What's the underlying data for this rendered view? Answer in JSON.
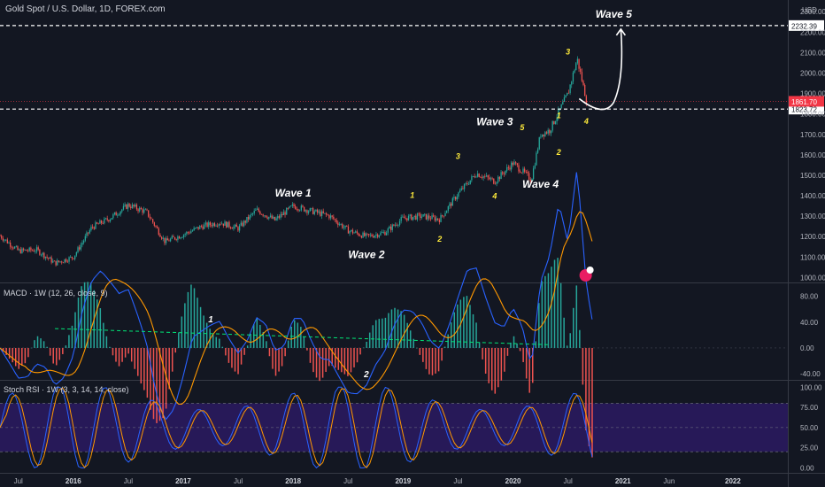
{
  "header": {
    "title": "Gold Spot / U.S. Dollar, 1D, FOREX.com",
    "currency": "USD"
  },
  "colors": {
    "background": "#131722",
    "up": "#26a69a",
    "down": "#ef5350",
    "white": "#ffffff",
    "yellow": "#ffeb3b",
    "macd": "#2962ff",
    "signal": "#ff9800",
    "stoch_k": "#2962ff",
    "stoch_d": "#ff9800",
    "stoch_band": "#2a1a5e",
    "price_badge": "#f23645",
    "level_badge": "#ffffff"
  },
  "chart_data": [
    {
      "type": "line",
      "name": "price",
      "x_ticks": [
        "Jul",
        "2016",
        "Jul",
        "2017",
        "Jul",
        "2018",
        "Jul",
        "2019",
        "Jul",
        "2020",
        "Jul",
        "2021",
        "Jun",
        "2022"
      ],
      "y_ticks": [
        1000,
        1100,
        1200,
        1300,
        1400,
        1500,
        1600,
        1700,
        1800,
        1900,
        2000,
        2100,
        2200,
        2300
      ],
      "y_tick_labels": [
        "1000.00",
        "1100.00",
        "1200.00",
        "1300.00",
        "1400.00",
        "1500.00",
        "1600.00",
        "1700.00",
        "1800.00",
        "1900.00",
        "2000.00",
        "2100.00",
        "2200.00",
        "2300.00"
      ],
      "ylim": [
        980,
        2340
      ],
      "x": [
        "2015-05",
        "2015-07",
        "2015-09",
        "2015-11",
        "2016-01",
        "2016-03",
        "2016-05",
        "2016-07",
        "2016-09",
        "2016-11",
        "2017-01",
        "2017-03",
        "2017-05",
        "2017-07",
        "2017-09",
        "2017-11",
        "2018-01",
        "2018-03",
        "2018-05",
        "2018-07",
        "2018-09",
        "2018-11",
        "2019-01",
        "2019-03",
        "2019-05",
        "2019-07",
        "2019-09",
        "2019-11",
        "2020-01",
        "2020-03",
        "2020-04",
        "2020-05",
        "2020-07",
        "2020-08",
        "2020-09"
      ],
      "y": [
        1205,
        1130,
        1135,
        1070,
        1100,
        1245,
        1290,
        1355,
        1320,
        1175,
        1210,
        1250,
        1270,
        1240,
        1330,
        1280,
        1350,
        1325,
        1300,
        1230,
        1200,
        1220,
        1290,
        1300,
        1285,
        1410,
        1510,
        1470,
        1560,
        1480,
        1700,
        1720,
        1900,
        2070,
        1870
      ],
      "current_price": "1861.70",
      "levels": [
        {
          "label": "2232.39",
          "value": 2232.39
        },
        {
          "label": "1823.72",
          "value": 1823.72
        }
      ],
      "annotations": [
        {
          "text": "Wave 1",
          "x": "2018-01",
          "y": 1395,
          "color": "white"
        },
        {
          "text": "Wave 2",
          "x": "2018-09",
          "y": 1095,
          "color": "white"
        },
        {
          "text": "Wave 3",
          "x": "2019-11",
          "y": 1745,
          "color": "white"
        },
        {
          "text": "Wave 4",
          "x": "2020-04",
          "y": 1440,
          "color": "white"
        },
        {
          "text": "Wave 5",
          "x": "2020-12",
          "y": 2270,
          "color": "white"
        },
        {
          "text": "1",
          "x": "2019-02",
          "y": 1390,
          "color": "yellow"
        },
        {
          "text": "2",
          "x": "2019-05",
          "y": 1175,
          "color": "yellow"
        },
        {
          "text": "3",
          "x": "2019-07",
          "y": 1580,
          "color": "yellow"
        },
        {
          "text": "4",
          "x": "2019-11",
          "y": 1385,
          "color": "yellow"
        },
        {
          "text": "5",
          "x": "2020-02",
          "y": 1720,
          "color": "yellow"
        },
        {
          "text": "1",
          "x": "2020-06",
          "y": 1780,
          "color": "yellow"
        },
        {
          "text": "2",
          "x": "2020-06",
          "y": 1600,
          "color": "yellow"
        },
        {
          "text": "3",
          "x": "2020-07",
          "y": 2090,
          "color": "yellow"
        },
        {
          "text": "4",
          "x": "2020-09",
          "y": 1750,
          "color": "yellow"
        }
      ]
    },
    {
      "type": "line",
      "name": "MACD",
      "label": "MACD · 1W (12, 26, close, 9)",
      "y_ticks": [
        -40,
        0,
        40,
        80
      ],
      "y_tick_labels": [
        "-40.00",
        "0.00",
        "40.00",
        "80.00"
      ],
      "ylim": [
        -48,
        100
      ],
      "annotations": [
        {
          "text": "1",
          "x": "2017-04",
          "y": 40
        },
        {
          "text": "2",
          "x": "2018-09",
          "y": -45
        }
      ]
    },
    {
      "type": "line",
      "name": "Stoch RSI",
      "label": "Stoch RSI · 1W (3, 3, 14, 14, close)",
      "y_ticks": [
        0,
        25,
        50,
        75,
        100
      ],
      "y_tick_labels": [
        "0.00",
        "25.00",
        "50.00",
        "75.00",
        "100.00"
      ],
      "ylim": [
        -5,
        108
      ],
      "band": [
        20,
        80
      ]
    }
  ]
}
